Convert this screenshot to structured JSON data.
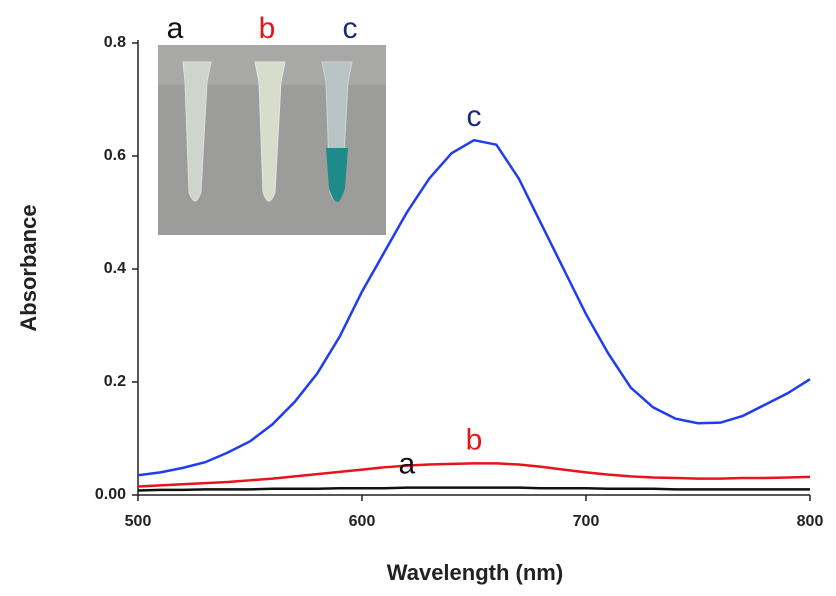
{
  "chart_data": {
    "type": "line",
    "x_label": "Wavelength (nm)",
    "y_label": "Absorbance",
    "x": [
      500,
      510,
      520,
      530,
      540,
      550,
      560,
      570,
      580,
      590,
      600,
      610,
      620,
      630,
      640,
      650,
      660,
      670,
      680,
      690,
      700,
      710,
      720,
      730,
      740,
      750,
      760,
      770,
      780,
      790,
      800
    ],
    "series": [
      {
        "name": "c",
        "color": "#1f3cf0",
        "label_color": "#1a2a7a",
        "values": [
          0.035,
          0.04,
          0.048,
          0.058,
          0.075,
          0.095,
          0.125,
          0.165,
          0.215,
          0.28,
          0.36,
          0.43,
          0.5,
          0.56,
          0.605,
          0.628,
          0.62,
          0.56,
          0.48,
          0.4,
          0.32,
          0.25,
          0.19,
          0.155,
          0.135,
          0.127,
          0.128,
          0.14,
          0.16,
          0.18,
          0.205
        ]
      },
      {
        "name": "b",
        "color": "#e8141b",
        "label_color": "#e8141b",
        "values": [
          0.015,
          0.017,
          0.019,
          0.021,
          0.023,
          0.026,
          0.029,
          0.033,
          0.037,
          0.041,
          0.045,
          0.049,
          0.052,
          0.054,
          0.055,
          0.056,
          0.056,
          0.054,
          0.05,
          0.045,
          0.04,
          0.036,
          0.033,
          0.031,
          0.03,
          0.029,
          0.029,
          0.03,
          0.03,
          0.031,
          0.032
        ]
      },
      {
        "name": "a",
        "color": "#111111",
        "label_color": "#111111",
        "values": [
          0.008,
          0.009,
          0.009,
          0.01,
          0.01,
          0.01,
          0.011,
          0.011,
          0.011,
          0.012,
          0.012,
          0.012,
          0.013,
          0.013,
          0.013,
          0.013,
          0.013,
          0.013,
          0.012,
          0.012,
          0.012,
          0.011,
          0.011,
          0.011,
          0.01,
          0.01,
          0.01,
          0.01,
          0.01,
          0.01,
          0.01
        ]
      }
    ],
    "inset_labels": [
      "a",
      "b",
      "c"
    ],
    "xlim": [
      500,
      800
    ],
    "xticks": [
      500,
      600,
      700,
      800
    ],
    "ylim": [
      0,
      0.8
    ],
    "yticks": [
      {
        "value": 0,
        "label": "0.00"
      },
      0.2,
      0.4,
      0.6,
      0.8
    ]
  }
}
